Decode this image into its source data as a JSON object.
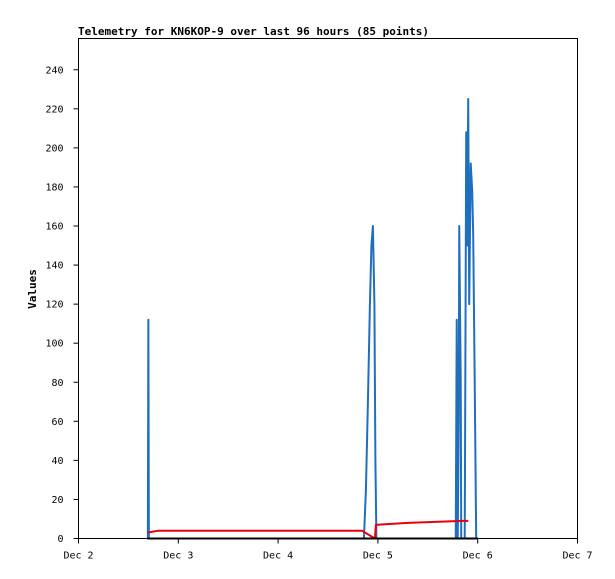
{
  "chart_data": {
    "type": "line",
    "title": "Telemetry for KN6KOP-9 over last 96 hours (85 points)",
    "xlabel": "",
    "ylabel": "Values",
    "xlim": [
      2.0,
      7.0
    ],
    "ylim": [
      0,
      256
    ],
    "x_ticks": [
      {
        "value": 2,
        "label": "Dec 2"
      },
      {
        "value": 3,
        "label": "Dec 3"
      },
      {
        "value": 4,
        "label": "Dec 4"
      },
      {
        "value": 5,
        "label": "Dec 5"
      },
      {
        "value": 6,
        "label": "Dec 6"
      },
      {
        "value": 7,
        "label": "Dec 7"
      }
    ],
    "y_ticks": [
      0,
      20,
      40,
      60,
      80,
      100,
      120,
      140,
      160,
      180,
      200,
      220,
      240
    ],
    "grid": false,
    "legend": "none",
    "series": [
      {
        "color": "#1f6fbf",
        "points": [
          [
            2.695,
            0
          ],
          [
            2.7,
            112
          ],
          [
            2.705,
            0
          ],
          [
            4.86,
            0
          ],
          [
            4.88,
            25
          ],
          [
            4.9,
            70
          ],
          [
            4.92,
            120
          ],
          [
            4.935,
            150
          ],
          [
            4.95,
            160
          ],
          [
            4.965,
            120
          ],
          [
            4.975,
            40
          ],
          [
            4.985,
            0
          ],
          [
            5.78,
            0
          ],
          [
            5.79,
            112
          ],
          [
            5.8,
            0
          ],
          [
            5.81,
            60
          ],
          [
            5.815,
            160
          ],
          [
            5.83,
            80
          ],
          [
            5.835,
            0
          ],
          [
            5.87,
            0
          ],
          [
            5.885,
            208
          ],
          [
            5.895,
            150
          ],
          [
            5.905,
            225
          ],
          [
            5.915,
            120
          ],
          [
            5.93,
            192
          ],
          [
            5.945,
            178
          ],
          [
            5.955,
            155
          ],
          [
            5.97,
            80
          ],
          [
            5.985,
            0
          ],
          [
            5.995,
            0
          ],
          [
            6.005,
            0
          ]
        ]
      },
      {
        "color": "#e8000b",
        "points": [
          [
            2.69,
            3
          ],
          [
            2.8,
            4
          ],
          [
            4.84,
            4
          ],
          [
            4.97,
            0
          ],
          [
            4.98,
            7
          ],
          [
            5.3,
            8
          ],
          [
            5.85,
            9
          ],
          [
            5.905,
            9
          ]
        ]
      },
      {
        "color": "#000000",
        "points": [
          [
            2.69,
            0
          ],
          [
            6.0,
            0
          ]
        ]
      }
    ]
  }
}
